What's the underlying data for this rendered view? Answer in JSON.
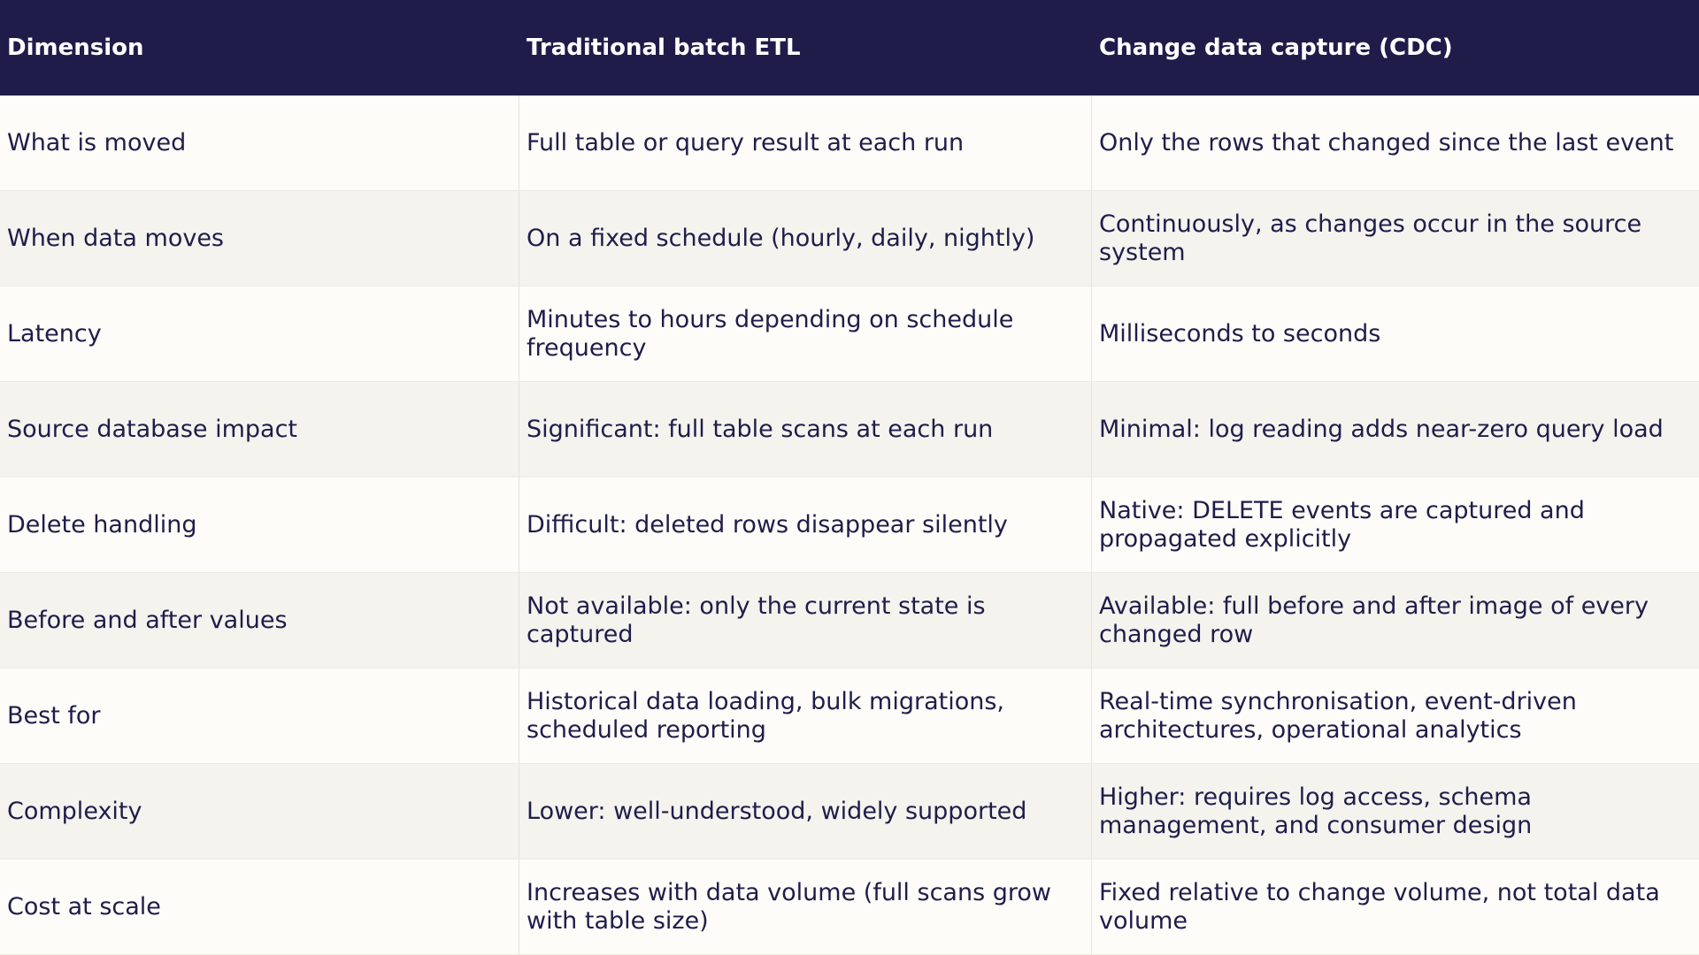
{
  "table": {
    "headers": [
      "Dimension",
      "Traditional batch ETL",
      "Change data capture (CDC)"
    ],
    "rows": [
      [
        "What is moved",
        "Full table or query result at each run",
        "Only the rows that changed since the last event"
      ],
      [
        "When data moves",
        "On a fixed schedule (hourly, daily, nightly)",
        "Continuously, as changes occur in the source system"
      ],
      [
        "Latency",
        "Minutes to hours depending on schedule frequency",
        "Milliseconds to seconds"
      ],
      [
        "Source database impact",
        "Significant: full table scans at each run",
        "Minimal: log reading adds near-zero query load"
      ],
      [
        "Delete handling",
        "Difficult: deleted rows disappear silently",
        "Native: DELETE events are captured and propagated explicitly"
      ],
      [
        "Before and after values",
        "Not available: only the current state is captured",
        "Available: full before and after image of every changed row"
      ],
      [
        "Best for",
        "Historical data loading, bulk migrations, scheduled reporting",
        "Real-time synchronisation, event-driven architectures, operational analytics"
      ],
      [
        "Complexity",
        "Lower: well-understood, widely supported",
        "Higher: requires log access, schema management, and consumer design"
      ],
      [
        "Cost at scale",
        "Increases with data volume (full scans grow with table size)",
        "Fixed relative to change volume, not total data volume"
      ]
    ]
  },
  "colors": {
    "header_bg": "#1f1c4a",
    "header_text": "#ffffff",
    "row_odd": "#fdfcf8",
    "row_even": "#f4f3ee",
    "text": "#1f1d4a"
  }
}
